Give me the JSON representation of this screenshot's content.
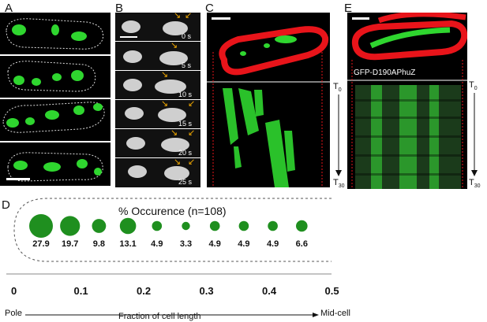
{
  "panels": {
    "a": {
      "label": "A"
    },
    "b": {
      "label": "B",
      "times": [
        "0 s",
        "5 s",
        "10 s",
        "15 s",
        "20 s",
        "25 s"
      ]
    },
    "c": {
      "label": "C",
      "t0": "T",
      "t0_sub": "0",
      "t30": "T",
      "t30_sub": "30"
    },
    "e": {
      "label": "E",
      "construct": "GFP-D190APhuZ",
      "t0": "T",
      "t0_sub": "0",
      "t30": "T",
      "t30_sub": "30"
    },
    "d": {
      "label": "D"
    }
  },
  "chart_data": {
    "type": "bubble",
    "title": "% Occurence (n=108)",
    "x_ticks": [
      "0",
      "0.1",
      "0.2",
      "0.3",
      "0.4",
      "0.5"
    ],
    "values": [
      27.9,
      19.7,
      9.8,
      13.1,
      4.9,
      3.3,
      4.9,
      4.9,
      4.9,
      6.6
    ],
    "value_labels": [
      "27.9",
      "19.7",
      "9.8",
      "13.1",
      "4.9",
      "3.3",
      "4.9",
      "4.9",
      "4.9",
      "6.6"
    ],
    "xlabel": "Fraction of cell length",
    "left_label": "Pole",
    "right_label": "Mid-cell",
    "colors": {
      "bubble": "#1f8f1f",
      "membrane": "#e8141a",
      "gfp": "#2fd62f",
      "arrow": "#f2a900"
    }
  }
}
